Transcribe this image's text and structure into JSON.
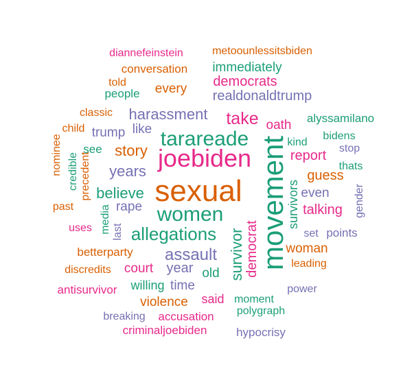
{
  "palette": {
    "teal": "#1b9e77",
    "orange": "#d95f02",
    "purple": "#7570b3",
    "pink": "#e7298a"
  },
  "words": [
    {
      "text": "sexual",
      "color": "orange"
    },
    {
      "text": "movement",
      "color": "teal"
    },
    {
      "text": "joebiden",
      "color": "pink"
    },
    {
      "text": "women",
      "color": "teal"
    },
    {
      "text": "tarareade",
      "color": "teal"
    },
    {
      "text": "allegations",
      "color": "teal"
    },
    {
      "text": "assault",
      "color": "purple"
    },
    {
      "text": "harassment",
      "color": "purple"
    },
    {
      "text": "take",
      "color": "pink"
    },
    {
      "text": "story",
      "color": "orange"
    },
    {
      "text": "believe",
      "color": "teal"
    },
    {
      "text": "years",
      "color": "purple"
    },
    {
      "text": "survivor",
      "color": "teal"
    },
    {
      "text": "democrat",
      "color": "pink"
    },
    {
      "text": "realdonaldtrump",
      "color": "purple"
    },
    {
      "text": "democrats",
      "color": "pink"
    },
    {
      "text": "immediately",
      "color": "teal"
    },
    {
      "text": "every",
      "color": "orange"
    },
    {
      "text": "conversation",
      "color": "orange"
    },
    {
      "text": "metoounlessitsbiden",
      "color": "orange"
    },
    {
      "text": "diannefeinstein",
      "color": "pink"
    },
    {
      "text": "told",
      "color": "orange"
    },
    {
      "text": "people",
      "color": "teal"
    },
    {
      "text": "classic",
      "color": "orange"
    },
    {
      "text": "child",
      "color": "orange"
    },
    {
      "text": "trump",
      "color": "purple"
    },
    {
      "text": "like",
      "color": "purple"
    },
    {
      "text": "oath",
      "color": "pink"
    },
    {
      "text": "alyssamilano",
      "color": "teal"
    },
    {
      "text": "bidens",
      "color": "teal"
    },
    {
      "text": "kind",
      "color": "teal"
    },
    {
      "text": "stop",
      "color": "purple"
    },
    {
      "text": "report",
      "color": "pink"
    },
    {
      "text": "thats",
      "color": "teal"
    },
    {
      "text": "guess",
      "color": "orange"
    },
    {
      "text": "survivors",
      "color": "teal"
    },
    {
      "text": "even",
      "color": "purple"
    },
    {
      "text": "gender",
      "color": "purple"
    },
    {
      "text": "talking",
      "color": "pink"
    },
    {
      "text": "set",
      "color": "purple"
    },
    {
      "text": "points",
      "color": "purple"
    },
    {
      "text": "woman",
      "color": "orange"
    },
    {
      "text": "leading",
      "color": "orange"
    },
    {
      "text": "power",
      "color": "purple"
    },
    {
      "text": "moment",
      "color": "teal"
    },
    {
      "text": "polygraph",
      "color": "teal"
    },
    {
      "text": "hypocrisy",
      "color": "purple"
    },
    {
      "text": "nominee",
      "color": "orange"
    },
    {
      "text": "credible",
      "color": "teal"
    },
    {
      "text": "precedent",
      "color": "orange"
    },
    {
      "text": "see",
      "color": "teal"
    },
    {
      "text": "past",
      "color": "orange"
    },
    {
      "text": "uses",
      "color": "pink"
    },
    {
      "text": "media",
      "color": "teal"
    },
    {
      "text": "last",
      "color": "purple"
    },
    {
      "text": "rape",
      "color": "purple"
    },
    {
      "text": "betterparty",
      "color": "orange"
    },
    {
      "text": "discredits",
      "color": "orange"
    },
    {
      "text": "court",
      "color": "pink"
    },
    {
      "text": "year",
      "color": "purple"
    },
    {
      "text": "old",
      "color": "teal"
    },
    {
      "text": "antisurvivor",
      "color": "pink"
    },
    {
      "text": "willing",
      "color": "teal"
    },
    {
      "text": "time",
      "color": "purple"
    },
    {
      "text": "violence",
      "color": "orange"
    },
    {
      "text": "said",
      "color": "pink"
    },
    {
      "text": "breaking",
      "color": "purple"
    },
    {
      "text": "accusation",
      "color": "pink"
    },
    {
      "text": "criminaljoebiden",
      "color": "pink"
    }
  ]
}
